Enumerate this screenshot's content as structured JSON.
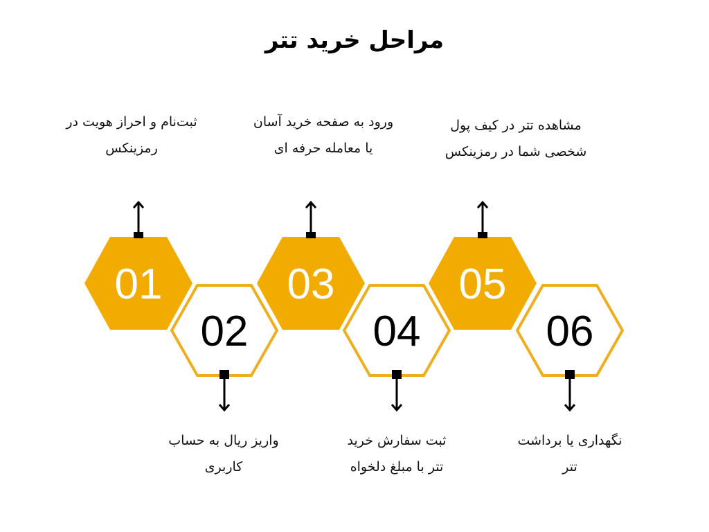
{
  "title": "مراحل خرید تتر",
  "colors": {
    "accent": "#F2AB00",
    "outline": "#EFAE1F",
    "text_dark": "#000000",
    "text_light": "#FFFFFF"
  },
  "steps": [
    {
      "number": "01",
      "filled": true,
      "lines": [
        "ثبت‌نام و احراز هویت در",
        "رمزینکس"
      ]
    },
    {
      "number": "02",
      "filled": false,
      "lines": [
        "واریز ریال به حساب",
        "کاربری"
      ]
    },
    {
      "number": "03",
      "filled": true,
      "lines": [
        "ورود به صفحه خرید آسان",
        "یا معامله حرفه ای"
      ]
    },
    {
      "number": "04",
      "filled": false,
      "lines": [
        "ثبت سفارش خرید",
        "تتر با مبلغ دلخواه"
      ]
    },
    {
      "number": "05",
      "filled": true,
      "lines": [
        "مشاهده تتر در کیف پول",
        "شخصی شما در رمزینکس"
      ]
    },
    {
      "number": "06",
      "filled": false,
      "lines": [
        "نگهداری یا برداشت",
        "تتر"
      ]
    }
  ]
}
